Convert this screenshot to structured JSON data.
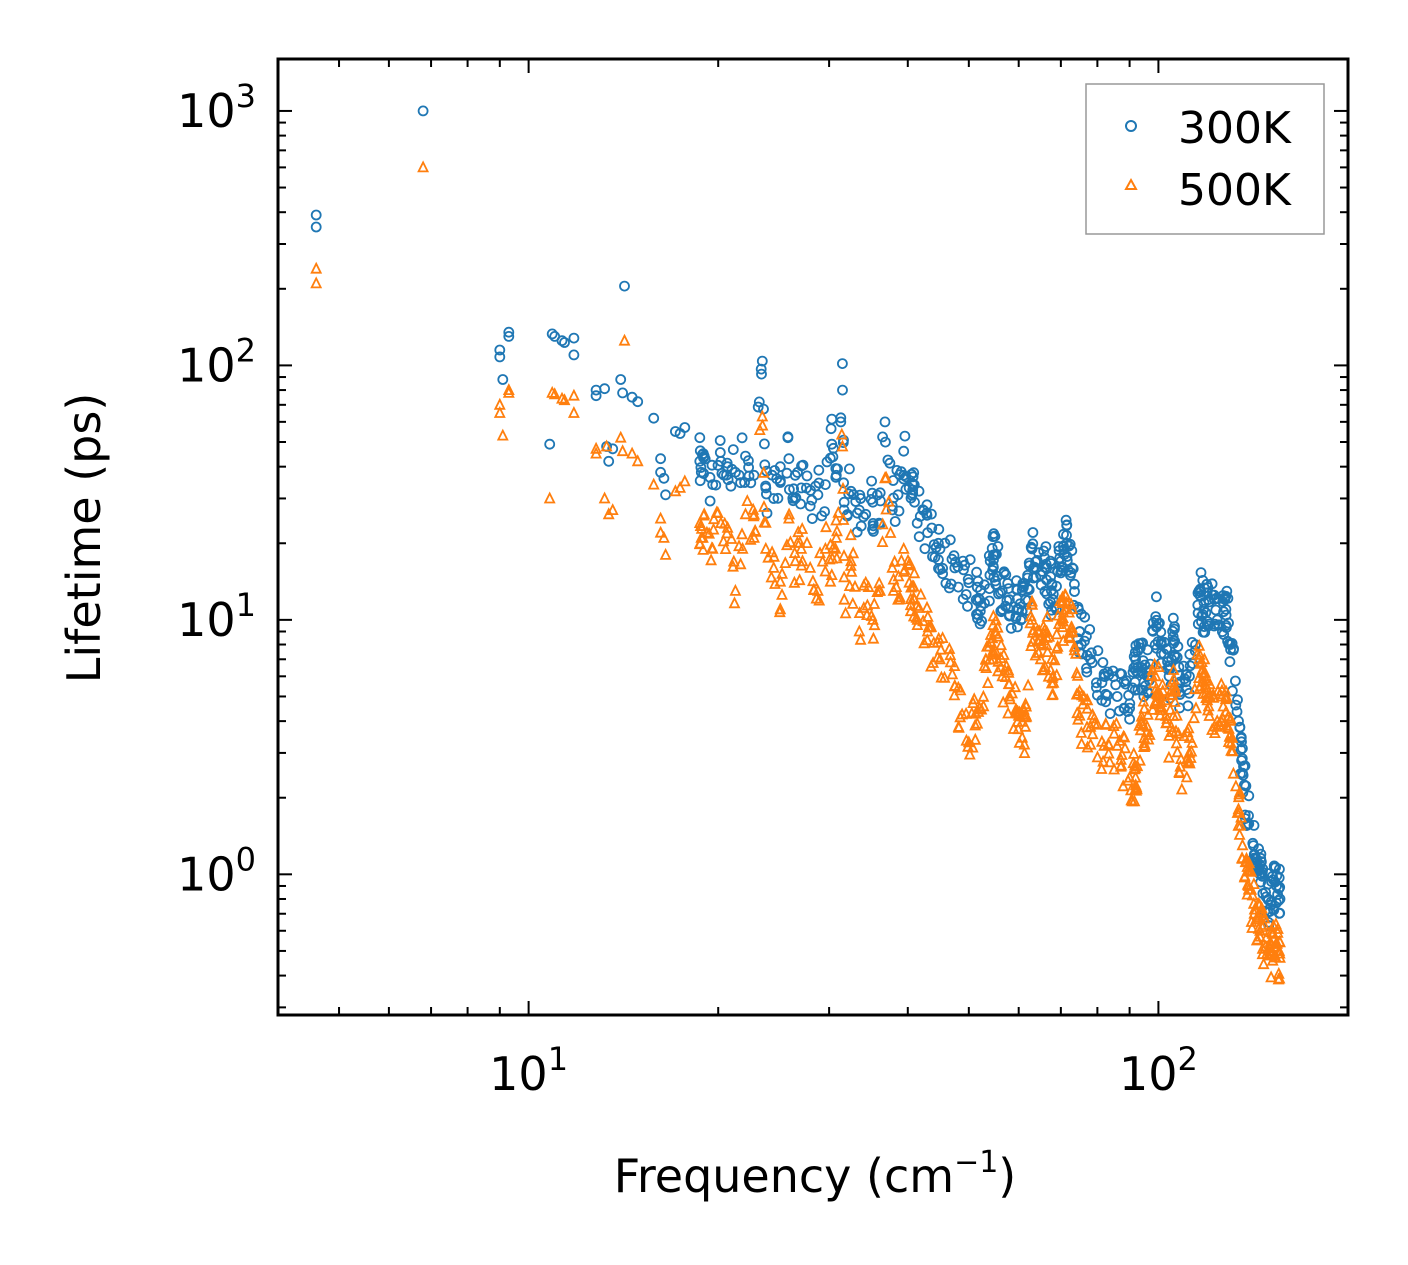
{
  "chart_data": {
    "type": "scatter",
    "xscale": "log",
    "yscale": "log",
    "xlim": [
      4.0,
      200.0
    ],
    "ylim": [
      0.28,
      1600
    ],
    "xlabel_main": "Frequency (cm",
    "xlabel_sup": "−1",
    "xlabel_end": ")",
    "ylabel": "Lifetime (ps)",
    "x_ticks": [
      {
        "value": 10,
        "base": "10",
        "exp": "1"
      },
      {
        "value": 100,
        "base": "10",
        "exp": "2"
      }
    ],
    "y_ticks": [
      {
        "value": 1,
        "base": "10",
        "exp": "0"
      },
      {
        "value": 10,
        "base": "10",
        "exp": "1"
      },
      {
        "value": 100,
        "base": "10",
        "exp": "2"
      },
      {
        "value": 1000,
        "base": "10",
        "exp": "3"
      }
    ],
    "legend_position": "top-right",
    "series": [
      {
        "name": "300K",
        "marker": "circle",
        "color": "#1f77b4",
        "points": [
          [
            4.6,
            390
          ],
          [
            4.6,
            350
          ],
          [
            6.8,
            1000
          ],
          [
            9.0,
            115
          ],
          [
            9.0,
            108
          ],
          [
            9.1,
            88
          ],
          [
            9.3,
            135
          ],
          [
            9.3,
            130
          ],
          [
            10.8,
            49
          ],
          [
            10.9,
            133
          ],
          [
            11.0,
            130
          ],
          [
            11.3,
            125
          ],
          [
            11.4,
            123
          ],
          [
            11.8,
            128
          ],
          [
            11.8,
            110
          ],
          [
            12.8,
            80
          ],
          [
            12.8,
            76
          ],
          [
            13.2,
            81
          ],
          [
            13.3,
            48
          ],
          [
            13.4,
            42
          ],
          [
            13.6,
            47
          ],
          [
            14.2,
            205
          ],
          [
            14.0,
            88
          ],
          [
            14.1,
            78
          ],
          [
            14.6,
            75
          ],
          [
            14.9,
            72
          ],
          [
            15.8,
            62
          ],
          [
            16.2,
            43
          ],
          [
            16.2,
            38
          ],
          [
            16.5,
            31
          ],
          [
            16.4,
            36
          ],
          [
            17.1,
            55
          ],
          [
            17.4,
            54
          ],
          [
            17.7,
            57
          ],
          [
            18.7,
            42
          ],
          [
            18.8,
            38
          ],
          [
            19.0,
            44
          ],
          [
            19.6,
            34
          ],
          [
            20.2,
            42
          ],
          [
            20.7,
            40
          ],
          [
            21.3,
            38
          ],
          [
            22.1,
            44
          ],
          [
            22.8,
            37
          ],
          [
            23.5,
            104
          ],
          [
            23.8,
            33
          ],
          [
            24.5,
            30
          ],
          [
            25.1,
            40
          ],
          [
            25.9,
            43
          ],
          [
            26.5,
            30
          ],
          [
            27.1,
            33
          ],
          [
            28.0,
            28
          ],
          [
            28.8,
            31
          ],
          [
            29.6,
            34
          ],
          [
            30.3,
            49
          ],
          [
            30.8,
            37
          ],
          [
            31.5,
            80
          ],
          [
            31.7,
            29
          ],
          [
            32.5,
            32
          ],
          [
            33.5,
            27
          ],
          [
            34.3,
            26
          ],
          [
            35.2,
            29
          ],
          [
            36.0,
            24
          ],
          [
            36.8,
            60
          ],
          [
            37.8,
            28
          ],
          [
            38.6,
            31
          ],
          [
            39.4,
            46
          ],
          [
            40.2,
            33
          ],
          [
            41.0,
            29
          ],
          [
            43.0,
            22
          ],
          [
            45.0,
            19
          ],
          [
            47.5,
            16
          ],
          [
            50.0,
            14
          ],
          [
            52.0,
            12
          ],
          [
            54.0,
            15
          ],
          [
            55.0,
            18
          ],
          [
            56.5,
            13
          ],
          [
            58.0,
            12
          ],
          [
            60.0,
            11
          ],
          [
            61.5,
            12
          ],
          [
            63.0,
            19
          ],
          [
            65.0,
            15
          ],
          [
            66.5,
            16
          ],
          [
            68.0,
            12
          ],
          [
            70.0,
            17
          ],
          [
            71.5,
            20
          ],
          [
            73.0,
            16
          ],
          [
            75.0,
            9
          ],
          [
            78.0,
            7
          ],
          [
            82.0,
            6
          ],
          [
            86.0,
            5
          ],
          [
            90.0,
            4.5
          ],
          [
            92.0,
            7
          ],
          [
            94.0,
            6.5
          ],
          [
            96.0,
            6
          ],
          [
            99.0,
            10.3
          ],
          [
            101.0,
            8
          ],
          [
            104.0,
            6
          ],
          [
            106.0,
            9.2
          ],
          [
            108.0,
            5.2
          ],
          [
            112.0,
            6
          ],
          [
            116.0,
            13
          ],
          [
            118.0,
            11
          ],
          [
            120.0,
            12
          ],
          [
            124.0,
            10
          ],
          [
            128.0,
            11
          ],
          [
            130.0,
            8
          ],
          [
            134.0,
            4
          ],
          [
            136.0,
            2.5
          ],
          [
            139.0,
            1.7
          ],
          [
            142.0,
            1.2
          ],
          [
            145.0,
            1.0
          ],
          [
            148.0,
            0.85
          ],
          [
            151.0,
            0.78
          ],
          [
            154.0,
            0.9
          ],
          [
            156.0,
            0.8
          ]
        ]
      },
      {
        "name": "500K",
        "marker": "triangle",
        "color": "#ff7f0e",
        "points": [
          [
            4.6,
            240
          ],
          [
            4.6,
            210
          ],
          [
            6.8,
            600
          ],
          [
            9.0,
            70
          ],
          [
            9.0,
            65
          ],
          [
            9.1,
            53
          ],
          [
            9.3,
            80
          ],
          [
            9.3,
            78
          ],
          [
            10.8,
            30
          ],
          [
            10.9,
            78
          ],
          [
            11.0,
            77
          ],
          [
            11.3,
            74
          ],
          [
            11.4,
            73
          ],
          [
            11.8,
            76
          ],
          [
            11.8,
            65
          ],
          [
            12.8,
            47
          ],
          [
            12.8,
            45
          ],
          [
            13.2,
            30
          ],
          [
            13.3,
            48
          ],
          [
            13.4,
            26
          ],
          [
            13.6,
            27
          ],
          [
            14.2,
            125
          ],
          [
            14.0,
            52
          ],
          [
            14.1,
            46
          ],
          [
            14.6,
            45
          ],
          [
            14.9,
            42
          ],
          [
            15.8,
            34
          ],
          [
            16.2,
            25
          ],
          [
            16.2,
            22
          ],
          [
            16.5,
            18
          ],
          [
            16.4,
            21
          ],
          [
            17.1,
            32
          ],
          [
            17.4,
            33
          ],
          [
            17.7,
            35
          ],
          [
            18.7,
            24
          ],
          [
            18.8,
            21
          ],
          [
            19.0,
            26
          ],
          [
            19.6,
            19
          ],
          [
            20.2,
            24
          ],
          [
            20.7,
            23
          ],
          [
            21.3,
            13
          ],
          [
            22.1,
            26
          ],
          [
            22.8,
            21
          ],
          [
            23.5,
            63
          ],
          [
            23.8,
            19
          ],
          [
            24.5,
            16
          ],
          [
            25.1,
            11
          ],
          [
            25.9,
            25
          ],
          [
            26.5,
            17
          ],
          [
            27.1,
            19
          ],
          [
            28.0,
            16
          ],
          [
            28.8,
            13
          ],
          [
            29.6,
            19
          ],
          [
            30.3,
            15
          ],
          [
            30.8,
            21
          ],
          [
            31.5,
            48
          ],
          [
            31.7,
            12
          ],
          [
            32.5,
            17
          ],
          [
            33.5,
            9
          ],
          [
            34.3,
            14
          ],
          [
            35.2,
            10
          ],
          [
            36.0,
            13
          ],
          [
            36.8,
            36
          ],
          [
            37.8,
            16
          ],
          [
            38.6,
            12
          ],
          [
            39.4,
            19
          ],
          [
            40.2,
            14
          ],
          [
            41.0,
            12
          ],
          [
            43.0,
            9
          ],
          [
            45.0,
            7
          ],
          [
            47.5,
            5.5
          ],
          [
            50.0,
            3.3
          ],
          [
            52.0,
            4.5
          ],
          [
            54.0,
            7
          ],
          [
            55.0,
            9
          ],
          [
            56.5,
            6
          ],
          [
            58.0,
            5
          ],
          [
            60.0,
            4.2
          ],
          [
            61.5,
            3.8
          ],
          [
            63.0,
            10
          ],
          [
            65.0,
            7
          ],
          [
            66.5,
            8.5
          ],
          [
            68.0,
            6
          ],
          [
            70.0,
            10
          ],
          [
            71.5,
            11
          ],
          [
            73.0,
            9
          ],
          [
            75.0,
            4.2
          ],
          [
            78.0,
            3.8
          ],
          [
            82.0,
            3.2
          ],
          [
            86.0,
            3.2
          ],
          [
            90.0,
            2.4
          ],
          [
            92.0,
            2.4
          ],
          [
            94.0,
            4
          ],
          [
            96.0,
            3.8
          ],
          [
            99.0,
            6
          ],
          [
            101.0,
            5
          ],
          [
            104.0,
            3.5
          ],
          [
            106.0,
            5.5
          ],
          [
            108.0,
            2.5
          ],
          [
            112.0,
            3
          ],
          [
            116.0,
            7
          ],
          [
            118.0,
            6
          ],
          [
            120.0,
            5
          ],
          [
            124.0,
            4
          ],
          [
            128.0,
            5
          ],
          [
            130.0,
            3.5
          ],
          [
            134.0,
            1.8
          ],
          [
            136.0,
            1.3
          ],
          [
            139.0,
            0.9
          ],
          [
            142.0,
            0.7
          ],
          [
            145.0,
            0.6
          ],
          [
            148.0,
            0.52
          ],
          [
            151.0,
            0.48
          ],
          [
            154.0,
            0.52
          ],
          [
            156.0,
            0.47
          ]
        ]
      }
    ]
  }
}
